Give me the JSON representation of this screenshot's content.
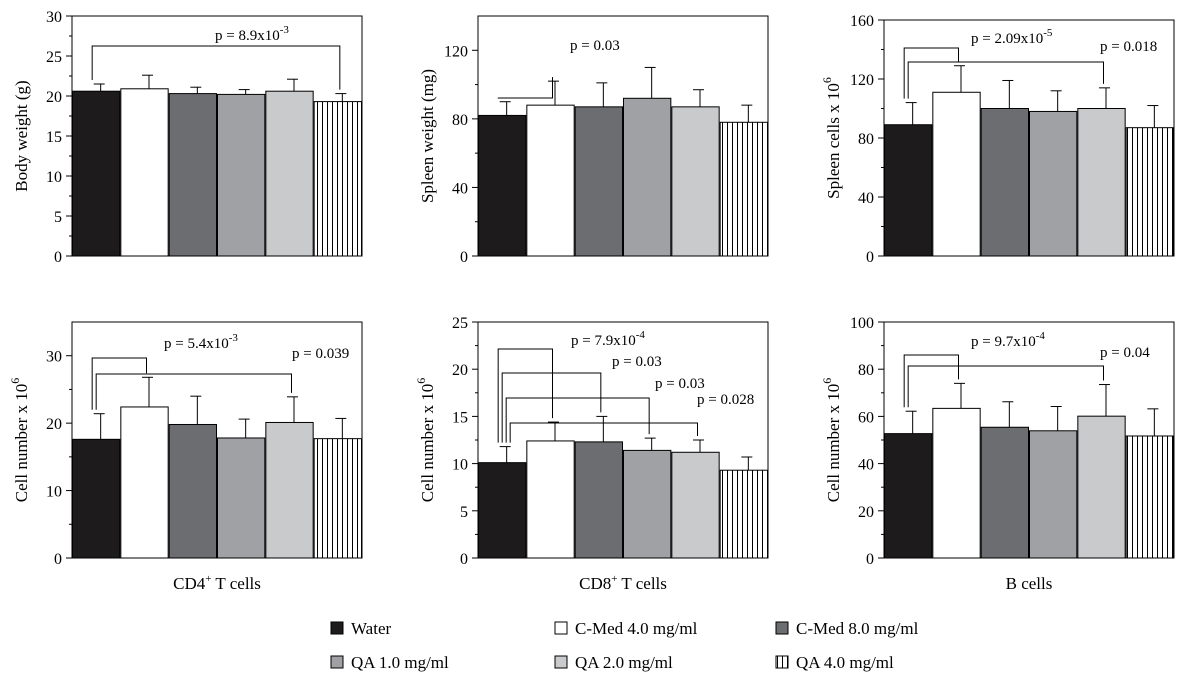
{
  "chart_data": [
    {
      "type": "bar",
      "ylabel": "Body weight (g)",
      "ylim": [
        0,
        30
      ],
      "yticks": [
        0,
        5,
        10,
        15,
        20,
        25,
        30
      ],
      "xlabel": "",
      "values": [
        20.6,
        20.9,
        20.3,
        20.2,
        20.6,
        19.3
      ],
      "errors": [
        0.9,
        1.7,
        0.8,
        0.6,
        1.5,
        1.0
      ],
      "annotations": [
        {
          "text": "p = 8.9x10",
          "sup": "-3",
          "from": 0,
          "to": [
            5
          ]
        }
      ]
    },
    {
      "type": "bar",
      "ylabel": "Spleen weight (mg)",
      "ylim": [
        0,
        140
      ],
      "yticks": [
        0,
        40,
        80,
        120
      ],
      "xlabel": "",
      "values": [
        82,
        88,
        87,
        92,
        87,
        78
      ],
      "errors": [
        8,
        14,
        14,
        18,
        10,
        10
      ],
      "annotations": [
        {
          "text": "p = 0.03",
          "sup": "",
          "from": 0,
          "to": [
            1
          ]
        }
      ]
    },
    {
      "type": "bar",
      "ylabel": "Spleen cells x 10",
      "ylabel_sup": "6",
      "ylim": [
        0,
        160
      ],
      "yticks": [
        0,
        40,
        80,
        120,
        160
      ],
      "xlabel": "",
      "values": [
        89,
        111,
        100,
        98,
        100,
        87
      ],
      "errors": [
        15,
        18,
        19,
        14,
        14,
        15
      ],
      "annotations": [
        {
          "text": "p = 2.09x10",
          "sup": "-5",
          "from": 0,
          "to": [
            1
          ]
        },
        {
          "text": "p = 0.018",
          "sup": "",
          "from": 0,
          "to": [
            4
          ]
        }
      ]
    },
    {
      "type": "bar",
      "ylabel": "Cell number x 10",
      "ylabel_sup": "6",
      "ylim": [
        0,
        35
      ],
      "yticks": [
        0,
        10,
        20,
        30
      ],
      "xlabel": "CD4",
      "xlabel_sup": "+",
      "xlabel_rest": " T cells",
      "values": [
        17.6,
        22.4,
        19.8,
        17.8,
        20.1,
        17.7
      ],
      "errors": [
        3.8,
        4.4,
        4.2,
        2.8,
        3.8,
        3.0
      ],
      "annotations": [
        {
          "text": "p = 5.4x10",
          "sup": "-3",
          "from": 0,
          "to": [
            1
          ]
        },
        {
          "text": "p = 0.039",
          "sup": "",
          "from": 0,
          "to": [
            4
          ]
        }
      ]
    },
    {
      "type": "bar",
      "ylabel": "Cell number x 10",
      "ylabel_sup": "6",
      "ylim": [
        0,
        25
      ],
      "yticks": [
        0,
        5,
        10,
        15,
        20,
        25
      ],
      "xlabel": "CD8",
      "xlabel_sup": "+",
      "xlabel_rest": " T cells",
      "values": [
        10.1,
        12.4,
        12.3,
        11.4,
        11.2,
        9.3
      ],
      "errors": [
        1.7,
        2.0,
        2.7,
        1.3,
        1.3,
        1.4
      ],
      "annotations": [
        {
          "text": "p = 7.9x10",
          "sup": "-4",
          "from": 0,
          "to": [
            1
          ]
        },
        {
          "text": "p = 0.03",
          "sup": "",
          "from": 0,
          "to": [
            2
          ]
        },
        {
          "text": "p = 0.03",
          "sup": "",
          "from": 0,
          "to": [
            3
          ]
        },
        {
          "text": "p = 0.028",
          "sup": "",
          "from": 0,
          "to": [
            4
          ]
        }
      ]
    },
    {
      "type": "bar",
      "ylabel": "Cell number x 10",
      "ylabel_sup": "6",
      "ylim": [
        0,
        100
      ],
      "yticks": [
        0,
        20,
        40,
        60,
        80,
        100
      ],
      "xlabel": "B cells",
      "values": [
        52.7,
        63.4,
        55.4,
        53.9,
        60.1,
        51.7
      ],
      "errors": [
        9.5,
        10.6,
        10.8,
        10.3,
        13.4,
        11.5
      ],
      "annotations": [
        {
          "text": "p = 9.7x10",
          "sup": "-4",
          "from": 0,
          "to": [
            1
          ]
        },
        {
          "text": "p = 0.04",
          "sup": "",
          "from": 0,
          "to": [
            4
          ]
        }
      ]
    }
  ],
  "legend": [
    {
      "label": "Water",
      "color": "#1e1b1c",
      "pattern": "solid"
    },
    {
      "label": "C-Med 4.0 mg/ml",
      "color": "#ffffff",
      "pattern": "solid"
    },
    {
      "label": "C-Med 8.0 mg/ml",
      "color": "#6c6d70",
      "pattern": "solid"
    },
    {
      "label": "QA 1.0 mg/ml",
      "color": "#a0a1a4",
      "pattern": "solid"
    },
    {
      "label": "QA 2.0 mg/ml",
      "color": "#c9cacc",
      "pattern": "solid"
    },
    {
      "label": "QA 4.0 mg/ml",
      "color": "#ffffff",
      "pattern": "vertical-stripes"
    }
  ]
}
